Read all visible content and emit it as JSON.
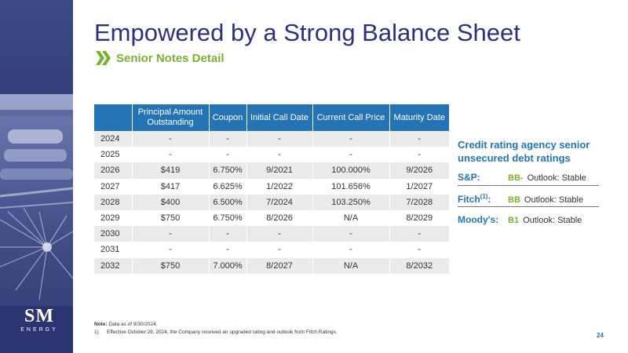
{
  "slide": {
    "title": "Empowered by a Strong Balance Sheet",
    "subtitle": "Senior Notes Detail",
    "page_number": "24"
  },
  "logo": {
    "line1": "SM",
    "line2": "ENERGY"
  },
  "table": {
    "headers": [
      "",
      "Principal Amount Outstanding",
      "Coupon",
      "Initial Call Date",
      "Current Call Price",
      "Maturity Date"
    ],
    "rows": [
      [
        "2024",
        "-",
        "-",
        "-",
        "-",
        "-"
      ],
      [
        "2025",
        "-",
        "-",
        "-",
        "-",
        "-"
      ],
      [
        "2026",
        "$419",
        "6.750%",
        "9/2021",
        "100.000%",
        "9/2026"
      ],
      [
        "2027",
        "$417",
        "6.625%",
        "1/2022",
        "101.656%",
        "1/2027"
      ],
      [
        "2028",
        "$400",
        "6.500%",
        "7/2024",
        "103.250%",
        "7/2028"
      ],
      [
        "2029",
        "$750",
        "6.750%",
        "8/2026",
        "N/A",
        "8/2029"
      ],
      [
        "2030",
        "-",
        "-",
        "-",
        "-",
        "-"
      ],
      [
        "2031",
        "-",
        "-",
        "-",
        "-",
        "-"
      ],
      [
        "2032",
        "$750",
        "7.000%",
        "8/2027",
        "N/A",
        "8/2032"
      ]
    ]
  },
  "ratings": {
    "heading": "Credit rating agency senior unsecured debt ratings",
    "items": [
      {
        "agency": "S&P:",
        "sup": "",
        "grade": "BB-",
        "outlook": "Outlook: Stable"
      },
      {
        "agency": "Fitch",
        "sup": "(1)",
        "grade": "BB",
        "outlook": "Outlook: Stable"
      },
      {
        "agency": "Moody's:",
        "sup": "",
        "grade": "B1",
        "outlook": "Outlook: Stable"
      }
    ],
    "fitch_suffix": ":"
  },
  "footnotes": {
    "note_label": "Note:",
    "note_text": " Data as of 9/30/2024.",
    "items": [
      {
        "num": "1)",
        "text": "Effective October 28, 2024, the Company received an upgraded rating and outlook from Fitch Ratings."
      }
    ]
  },
  "colors": {
    "title": "#2e2f7f",
    "accent_green": "#7ab32e",
    "accent_blue": "#2474b5",
    "sidebar": "#2b3470"
  }
}
